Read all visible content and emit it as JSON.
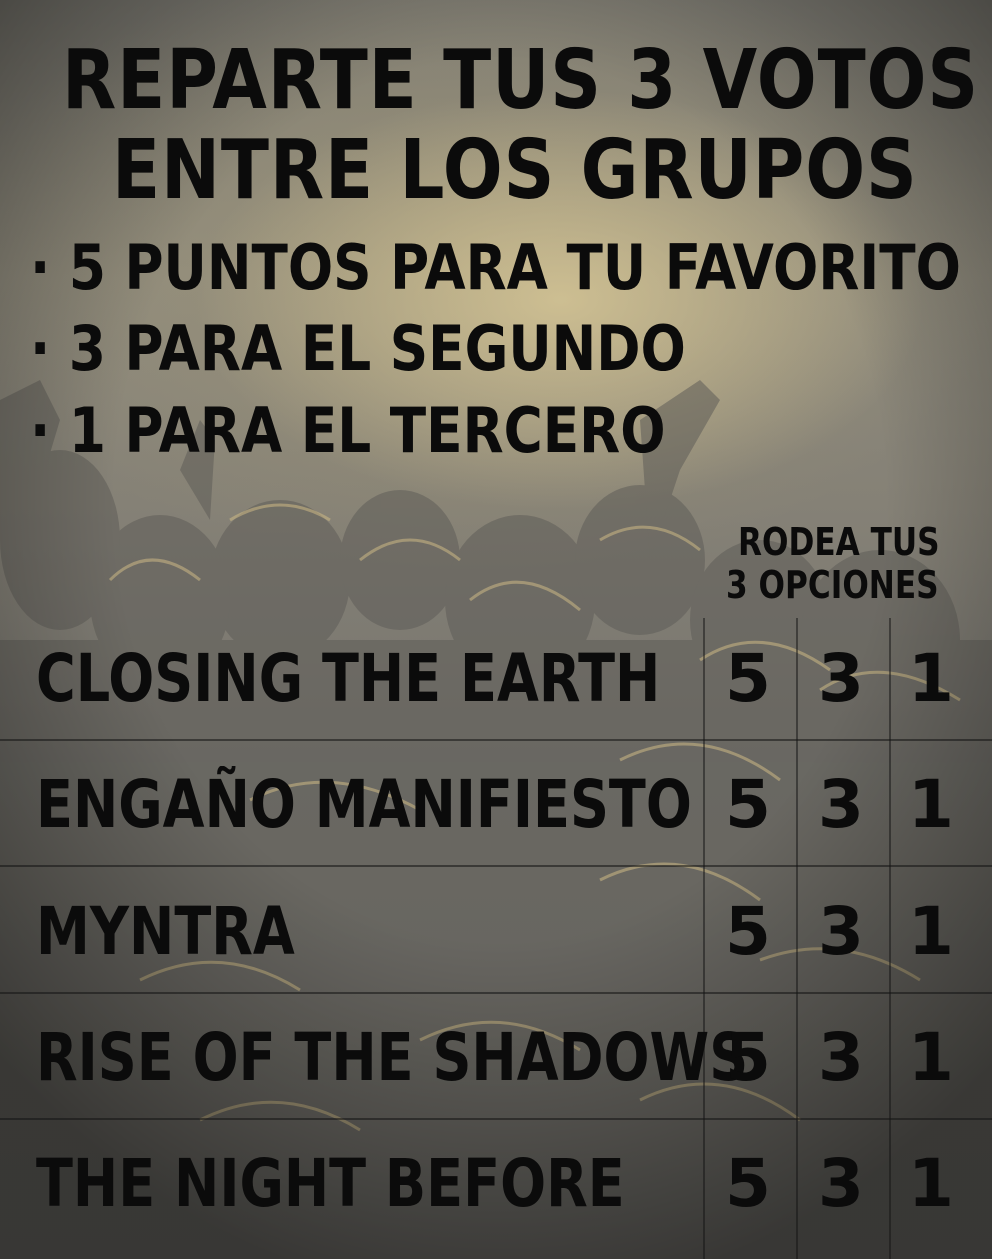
{
  "title_line1": "REPARTE TUS 3 VOTOS",
  "title_line2": "ENTRE LOS GRUPOS",
  "rules": [
    "· 5 PUNTOS PARA TU FAVORITO",
    "· 3 PARA EL SEGUNDO",
    "· 1 PARA EL TERCERO"
  ],
  "instruction_line1": "RODEA TUS",
  "instruction_line2": "3 OPCIONES",
  "bands": [
    {
      "name": "CLOSING THE EARTH",
      "options": [
        "5",
        "3",
        "1"
      ]
    },
    {
      "name": "ENGAÑO MANIFIESTO",
      "options": [
        "5",
        "3",
        "1"
      ]
    },
    {
      "name": "MYNTRA",
      "options": [
        "5",
        "3",
        "1"
      ]
    },
    {
      "name": "RISE OF THE SHADOWS",
      "options": [
        "5",
        "3",
        "1"
      ]
    },
    {
      "name": "THE NIGHT BEFORE",
      "options": [
        "5",
        "3",
        "1"
      ]
    }
  ],
  "colors": {
    "text": "#0b0b0b",
    "highlight": "#d6c696",
    "background": "#7a786f"
  }
}
